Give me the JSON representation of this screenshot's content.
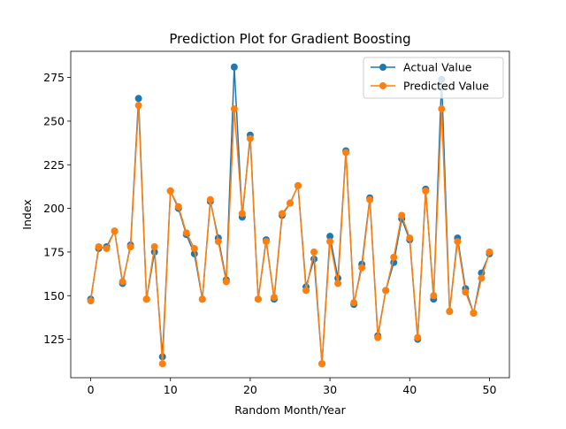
{
  "chart_data": {
    "type": "line",
    "title": "Prediction Plot for Gradient Boosting",
    "xlabel": "Random Month/Year",
    "ylabel": "Index",
    "xlim": [
      -2.5,
      52.5
    ],
    "ylim": [
      103,
      290
    ],
    "xticks": [
      0,
      10,
      20,
      30,
      40,
      50
    ],
    "yticks": [
      125,
      150,
      175,
      200,
      225,
      250,
      275
    ],
    "grid": false,
    "legend_position": "top-right",
    "x": [
      0,
      1,
      2,
      3,
      4,
      5,
      6,
      7,
      8,
      9,
      10,
      11,
      12,
      13,
      14,
      15,
      16,
      17,
      18,
      19,
      20,
      21,
      22,
      23,
      24,
      25,
      26,
      27,
      28,
      29,
      30,
      31,
      32,
      33,
      34,
      35,
      36,
      37,
      38,
      39,
      40,
      41,
      42,
      43,
      44,
      45,
      46,
      47,
      48,
      49,
      50
    ],
    "series": [
      {
        "name": "Actual Value",
        "color": "#1f77b4",
        "values": [
          148,
          177,
          178,
          187,
          157,
          179,
          263,
          148,
          175,
          115,
          210,
          200,
          185,
          174,
          148,
          204,
          183,
          159,
          281,
          195,
          242,
          148,
          182,
          148,
          196,
          203,
          213,
          155,
          171,
          111,
          184,
          160,
          233,
          145,
          168,
          206,
          127,
          153,
          169,
          194,
          182,
          125,
          211,
          148,
          274,
          141,
          183,
          154,
          140,
          163,
          174
        ]
      },
      {
        "name": "Predicted Value",
        "color": "#ff7f0e",
        "values": [
          147,
          178,
          177,
          187,
          158,
          178,
          259,
          148,
          178,
          111,
          210,
          201,
          186,
          177,
          148,
          205,
          181,
          158,
          257,
          197,
          240,
          148,
          181,
          149,
          197,
          203,
          213,
          153,
          175,
          111,
          181,
          157,
          232,
          146,
          166,
          205,
          126,
          153,
          172,
          196,
          183,
          126,
          210,
          150,
          257,
          141,
          181,
          152,
          140,
          160,
          175
        ]
      }
    ]
  }
}
